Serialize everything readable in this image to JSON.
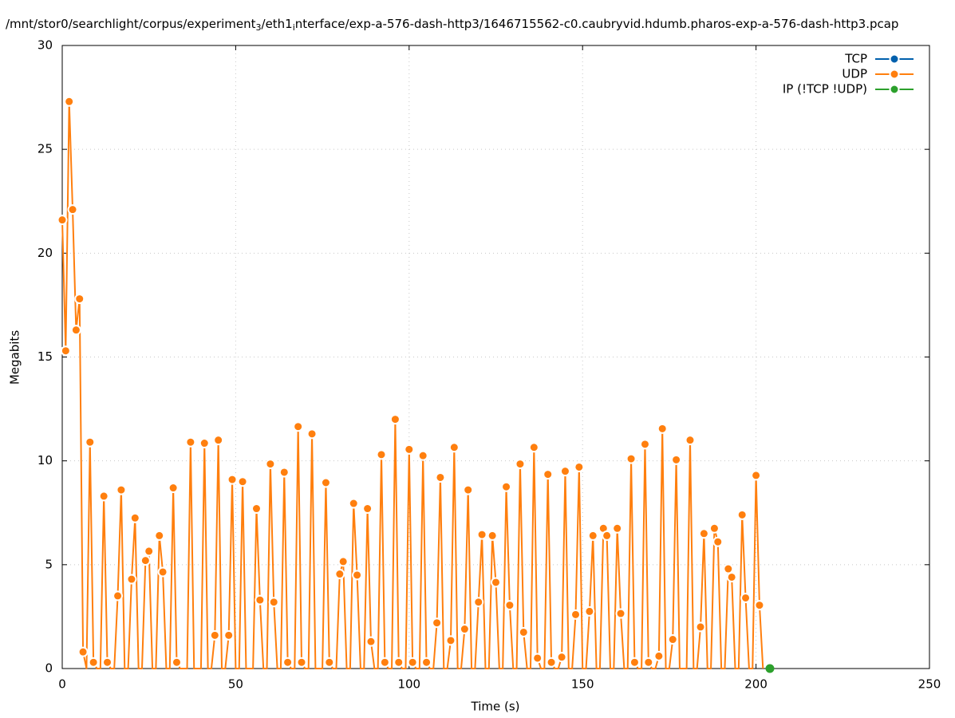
{
  "chart_data": {
    "type": "line",
    "title": [
      {
        "text": "/mnt/stor0/searchlight/corpus/experiment",
        "subscript": false
      },
      {
        "text": "3",
        "subscript": true
      },
      {
        "text": "/eth1",
        "subscript": false
      },
      {
        "text": "i",
        "subscript": true
      },
      {
        "text": "nterface/exp-a-576-dash-http3/1646715562-c0.caubryvid.hdumb.pharos-exp-a-576-dash-http3.pcap",
        "subscript": false
      }
    ],
    "x_label": "Time (s)",
    "y_label": "Megabits",
    "xlim": [
      0,
      250
    ],
    "xticks": [
      0,
      50,
      100,
      150,
      200,
      250
    ],
    "ylim": [
      0,
      30
    ],
    "yticks": [
      0,
      5,
      10,
      15,
      20,
      25,
      30
    ],
    "grid": true,
    "legend": "top-right",
    "series": [
      {
        "name": "TCP",
        "color": "#0060ad",
        "x": [],
        "values": []
      },
      {
        "name": "UDP",
        "color": "#ff7f0e",
        "x": [
          0,
          1,
          2,
          3,
          4,
          5,
          6,
          7,
          8,
          9,
          10,
          11,
          12,
          13,
          14,
          15,
          16,
          17,
          18,
          19,
          20,
          21,
          22,
          23,
          24,
          25,
          26,
          27,
          28,
          29,
          30,
          31,
          32,
          33,
          34,
          35,
          36,
          37,
          38,
          39,
          40,
          41,
          42,
          43,
          44,
          45,
          46,
          47,
          48,
          49,
          50,
          51,
          52,
          53,
          54,
          55,
          56,
          57,
          58,
          59,
          60,
          61,
          62,
          63,
          64,
          65,
          66,
          67,
          68,
          69,
          70,
          71,
          72,
          73,
          74,
          75,
          76,
          77,
          78,
          79,
          80,
          81,
          82,
          83,
          84,
          85,
          86,
          87,
          88,
          89,
          90,
          91,
          92,
          93,
          94,
          95,
          96,
          97,
          98,
          99,
          100,
          101,
          102,
          103,
          104,
          105,
          106,
          107,
          108,
          109,
          110,
          111,
          112,
          113,
          114,
          115,
          116,
          117,
          118,
          119,
          120,
          121,
          122,
          123,
          124,
          125,
          126,
          127,
          128,
          129,
          130,
          131,
          132,
          133,
          134,
          135,
          136,
          137,
          138,
          139,
          140,
          141,
          142,
          143,
          144,
          145,
          146,
          147,
          148,
          149,
          150,
          151,
          152,
          153,
          154,
          155,
          156,
          157,
          158,
          159,
          160,
          161,
          162,
          163,
          164,
          165,
          166,
          167,
          168,
          169,
          170,
          171,
          172,
          173,
          174,
          175,
          176,
          177,
          178,
          179,
          180,
          181,
          182,
          183,
          184,
          185,
          186,
          187,
          188,
          189,
          190,
          191,
          192,
          193,
          194,
          195,
          196,
          197,
          198,
          199,
          200,
          201,
          202
        ],
        "values": [
          21.6,
          15.3,
          27.3,
          22.1,
          16.3,
          17.8,
          0.8,
          0,
          10.9,
          0.3,
          0,
          0,
          8.3,
          0.3,
          0,
          0,
          3.5,
          8.6,
          0,
          0,
          4.3,
          7.25,
          0,
          0,
          5.2,
          5.65,
          0,
          0,
          6.4,
          4.65,
          0,
          0,
          8.7,
          0.3,
          0,
          0,
          0,
          10.9,
          0,
          0,
          0,
          10.85,
          0,
          0,
          1.6,
          11.0,
          0,
          0,
          1.6,
          9.1,
          0,
          0,
          9.0,
          0,
          0,
          0,
          7.7,
          3.3,
          0,
          0,
          9.85,
          3.2,
          0,
          0,
          9.45,
          0.3,
          0,
          0,
          11.65,
          0.3,
          0,
          0,
          11.3,
          0,
          0,
          0,
          8.95,
          0.3,
          0,
          0,
          4.55,
          5.15,
          0,
          0,
          7.95,
          4.5,
          0,
          0,
          7.7,
          1.3,
          0,
          0,
          10.3,
          0.3,
          0,
          0,
          12.0,
          0.3,
          0,
          0,
          10.55,
          0.3,
          0,
          0,
          10.25,
          0.3,
          0,
          0,
          2.2,
          9.2,
          0,
          0,
          1.35,
          10.65,
          0,
          0,
          1.9,
          8.6,
          0,
          0,
          3.2,
          6.45,
          0,
          0,
          6.4,
          4.15,
          0,
          0,
          8.75,
          3.05,
          0,
          0,
          9.85,
          1.75,
          0,
          0,
          10.65,
          0.5,
          0,
          0,
          9.35,
          0.3,
          0,
          0,
          0.55,
          9.5,
          0,
          0,
          2.6,
          9.7,
          0,
          0,
          2.75,
          6.4,
          0,
          0,
          6.75,
          6.4,
          0,
          0,
          6.75,
          2.65,
          0,
          0,
          10.1,
          0.3,
          0,
          0,
          10.8,
          0.3,
          0,
          0,
          0.6,
          11.55,
          0,
          0,
          1.4,
          10.05,
          0,
          0,
          0,
          11.0,
          0,
          0,
          2.0,
          6.5,
          0,
          0,
          6.75,
          6.1,
          0,
          0,
          4.8,
          4.4,
          0,
          0,
          7.4,
          3.4,
          0,
          0,
          9.3,
          3.05,
          0
        ]
      },
      {
        "name": "IP (!TCP  !UDP)",
        "color": "#2ca02c",
        "x": [
          204
        ],
        "values": [
          0
        ]
      }
    ]
  }
}
